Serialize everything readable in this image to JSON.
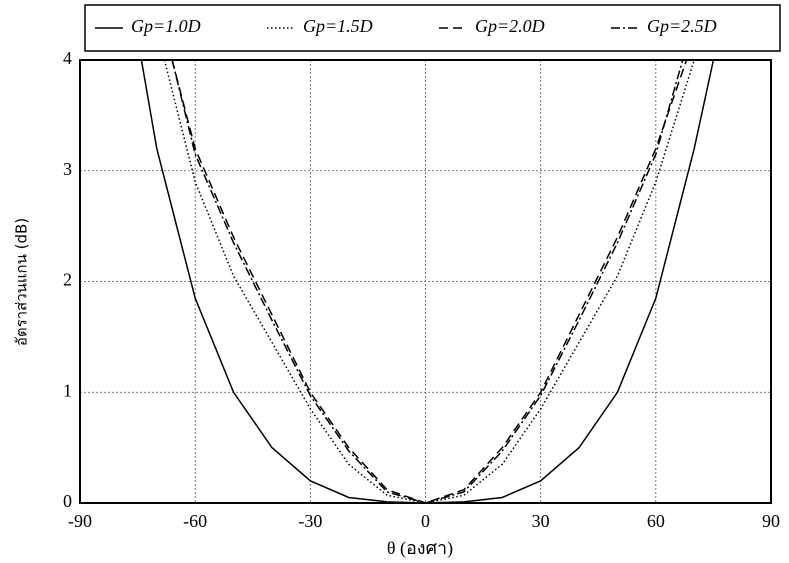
{
  "chart_data": {
    "type": "line",
    "x_label": "θ (องศา)",
    "y_label": "อัตราส่วนแกน (dB)",
    "xlim": [
      -90,
      90
    ],
    "xticks": [
      -90,
      -60,
      -30,
      0,
      30,
      60,
      90
    ],
    "ylim": [
      0,
      4
    ],
    "yticks": [
      0,
      1,
      2,
      3,
      4
    ],
    "grid": true,
    "legend": "top",
    "series": [
      {
        "name": "Gp=1.0D",
        "color": "#000000",
        "line_style": "solid",
        "x": [
          -74,
          -70,
          -60,
          -50,
          -40,
          -30,
          -20,
          -10,
          0,
          10,
          20,
          30,
          40,
          50,
          60,
          70,
          75
        ],
        "values": [
          4,
          3.2,
          1.85,
          1.0,
          0.5,
          0.2,
          0.05,
          0.01,
          0,
          0.01,
          0.05,
          0.2,
          0.5,
          1.0,
          1.85,
          3.2,
          4
        ]
      },
      {
        "name": "Gp=1.5D",
        "color": "#000000",
        "line_style": "dotted",
        "x": [
          -68,
          -60,
          -50,
          -40,
          -30,
          -20,
          -10,
          0,
          10,
          20,
          30,
          40,
          50,
          60,
          70
        ],
        "values": [
          4,
          2.9,
          2.05,
          1.45,
          0.85,
          0.35,
          0.07,
          0,
          0.07,
          0.35,
          0.85,
          1.45,
          2.05,
          2.9,
          4
        ]
      },
      {
        "name": "Gp=2.0D",
        "color": "#000000",
        "line_style": "dashed",
        "x": [
          -66,
          -60,
          -50,
          -40,
          -30,
          -20,
          -10,
          0,
          10,
          20,
          30,
          40,
          50,
          60,
          68
        ],
        "values": [
          4,
          3.2,
          2.4,
          1.7,
          1.0,
          0.5,
          0.12,
          0,
          0.12,
          0.5,
          1.0,
          1.7,
          2.4,
          3.2,
          4
        ]
      },
      {
        "name": "Gp=2.5D",
        "color": "#000000",
        "line_style": "dashdot",
        "x": [
          -66,
          -60,
          -50,
          -40,
          -30,
          -20,
          -10,
          0,
          10,
          20,
          30,
          40,
          50,
          60,
          67
        ],
        "values": [
          4,
          3.15,
          2.35,
          1.65,
          0.97,
          0.47,
          0.1,
          0,
          0.1,
          0.47,
          0.97,
          1.65,
          2.35,
          3.15,
          4
        ]
      }
    ]
  }
}
